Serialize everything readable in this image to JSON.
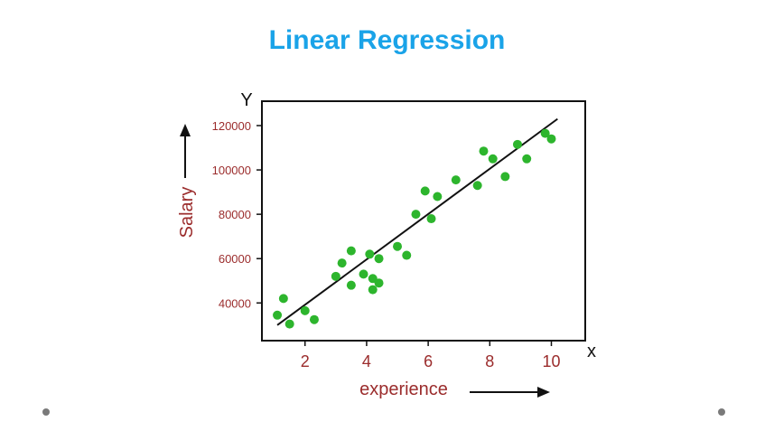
{
  "colors": {
    "title": "#1aa3e8",
    "axis_text": "#9b2c2c",
    "point": "#2db52d",
    "line": "#111111",
    "frame": "#111111"
  },
  "chart_data": {
    "type": "scatter",
    "title": "Linear Regression",
    "xlabel": "experience",
    "ylabel": "Salary",
    "x_axis_letter": "X",
    "y_axis_letter": "Y",
    "xlim": [
      0.6,
      11.1
    ],
    "ylim": [
      23000,
      131000
    ],
    "x_ticks": [
      2,
      4,
      6,
      8,
      10
    ],
    "y_ticks": [
      40000,
      60000,
      80000,
      100000,
      120000
    ],
    "grid": false,
    "points": [
      {
        "x": 1.1,
        "y": 34500
      },
      {
        "x": 1.3,
        "y": 42000
      },
      {
        "x": 1.5,
        "y": 30500
      },
      {
        "x": 2.0,
        "y": 36500
      },
      {
        "x": 2.3,
        "y": 32500
      },
      {
        "x": 3.0,
        "y": 52000
      },
      {
        "x": 3.2,
        "y": 58000
      },
      {
        "x": 3.5,
        "y": 63500
      },
      {
        "x": 3.5,
        "y": 48000
      },
      {
        "x": 3.9,
        "y": 53000
      },
      {
        "x": 4.1,
        "y": 62000
      },
      {
        "x": 4.2,
        "y": 46000
      },
      {
        "x": 4.2,
        "y": 51000
      },
      {
        "x": 4.4,
        "y": 60000
      },
      {
        "x": 4.4,
        "y": 49000
      },
      {
        "x": 5.0,
        "y": 65500
      },
      {
        "x": 5.3,
        "y": 61500
      },
      {
        "x": 5.6,
        "y": 80000
      },
      {
        "x": 5.9,
        "y": 90500
      },
      {
        "x": 6.1,
        "y": 78000
      },
      {
        "x": 6.3,
        "y": 88000
      },
      {
        "x": 6.9,
        "y": 95500
      },
      {
        "x": 7.6,
        "y": 93000
      },
      {
        "x": 7.8,
        "y": 108500
      },
      {
        "x": 8.1,
        "y": 105000
      },
      {
        "x": 8.5,
        "y": 97000
      },
      {
        "x": 8.9,
        "y": 111500
      },
      {
        "x": 9.2,
        "y": 105000
      },
      {
        "x": 9.8,
        "y": 116500
      },
      {
        "x": 10.0,
        "y": 114000
      }
    ],
    "regression_line": {
      "x": [
        1.1,
        10.2
      ],
      "y": [
        30000,
        123000
      ]
    }
  }
}
